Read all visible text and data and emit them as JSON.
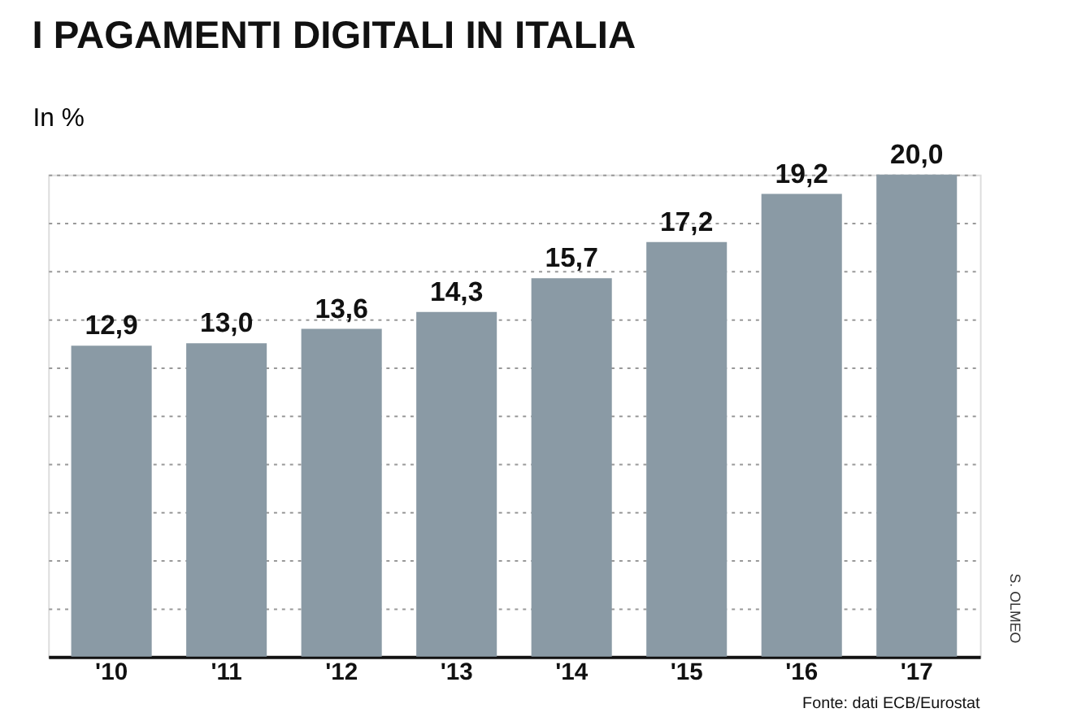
{
  "chart_data": {
    "type": "bar",
    "title": "I PAGAMENTI DIGITALI IN ITALIA",
    "ylabel": "In %",
    "categories": [
      "'10",
      "'11",
      "'12",
      "'13",
      "'14",
      "'15",
      "'16",
      "'17"
    ],
    "values": [
      12.9,
      13.0,
      13.6,
      14.3,
      15.7,
      17.2,
      19.2,
      20.0
    ],
    "value_labels": [
      "12,9",
      "13,0",
      "13,6",
      "14,3",
      "15,7",
      "17,2",
      "19,2",
      "20,0"
    ],
    "color": "#8a9aa5",
    "grid": "y",
    "tick_labels": "x",
    "annotations": [
      "Fonte: dati ECB/Eurostat",
      "S. OLMEO"
    ]
  }
}
